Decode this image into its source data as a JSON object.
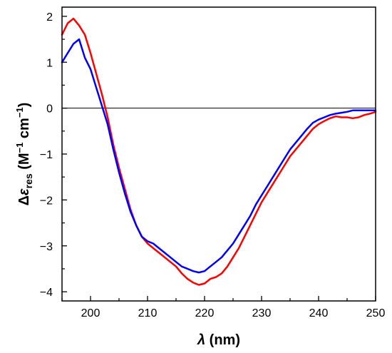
{
  "chart_data": {
    "type": "line",
    "title": "",
    "xlim": [
      195,
      250
    ],
    "ylim": [
      -4.2,
      2.2
    ],
    "x_ticks": [
      200,
      210,
      220,
      230,
      240,
      250
    ],
    "y_ticks": [
      -4,
      -3,
      -2,
      -1,
      0,
      1,
      2
    ],
    "x_tick_labels": [
      "200",
      "210",
      "220",
      "230",
      "240",
      "250"
    ],
    "y_tick_labels": [
      "−4",
      "−3",
      "−2",
      "−1",
      "0",
      "1",
      "2"
    ],
    "xlabel": {
      "main": "λ",
      "unit": " (nm)"
    },
    "ylabel": {
      "delta": "Δ",
      "eps": "ε",
      "sub": "res",
      "open": " (M",
      "sup1": "−1",
      "mid": " cm",
      "sup2": "−1",
      "close": ")"
    },
    "zero_line": true,
    "grid": false,
    "legend": "none",
    "series": [
      {
        "color": "#ff0000",
        "x": [
          195,
          196,
          197,
          198,
          199,
          200,
          201,
          202,
          203,
          204,
          205,
          206,
          207,
          208,
          209,
          210,
          211,
          212,
          213,
          214,
          215,
          216,
          217,
          218,
          219,
          220,
          221,
          222,
          223,
          224,
          225,
          226,
          227,
          228,
          229,
          230,
          231,
          232,
          233,
          234,
          235,
          236,
          237,
          238,
          239,
          240,
          241,
          242,
          243,
          244,
          245,
          246,
          247,
          248,
          249,
          250
        ],
        "y": [
          1.6,
          1.85,
          1.95,
          1.8,
          1.6,
          1.2,
          0.75,
          0.3,
          -0.2,
          -0.8,
          -1.3,
          -1.75,
          -2.2,
          -2.55,
          -2.8,
          -2.95,
          -3.05,
          -3.15,
          -3.25,
          -3.35,
          -3.45,
          -3.6,
          -3.72,
          -3.8,
          -3.85,
          -3.82,
          -3.72,
          -3.68,
          -3.6,
          -3.45,
          -3.25,
          -3.05,
          -2.8,
          -2.55,
          -2.3,
          -2.05,
          -1.85,
          -1.65,
          -1.45,
          -1.25,
          -1.05,
          -0.9,
          -0.75,
          -0.6,
          -0.45,
          -0.35,
          -0.28,
          -0.22,
          -0.18,
          -0.2,
          -0.2,
          -0.22,
          -0.2,
          -0.15,
          -0.12,
          -0.08
        ]
      },
      {
        "color": "#0000ff",
        "x": [
          195,
          196,
          197,
          198,
          199,
          200,
          201,
          202,
          203,
          204,
          205,
          206,
          207,
          208,
          209,
          210,
          211,
          212,
          213,
          214,
          215,
          216,
          217,
          218,
          219,
          220,
          221,
          222,
          223,
          224,
          225,
          226,
          227,
          228,
          229,
          230,
          231,
          232,
          233,
          234,
          235,
          236,
          237,
          238,
          239,
          240,
          241,
          242,
          243,
          244,
          245,
          246,
          247,
          248,
          249,
          250
        ],
        "y": [
          1.0,
          1.2,
          1.4,
          1.5,
          1.1,
          0.85,
          0.45,
          0.05,
          -0.35,
          -0.9,
          -1.4,
          -1.85,
          -2.25,
          -2.55,
          -2.8,
          -2.9,
          -2.95,
          -3.05,
          -3.15,
          -3.25,
          -3.35,
          -3.45,
          -3.5,
          -3.55,
          -3.58,
          -3.55,
          -3.45,
          -3.35,
          -3.25,
          -3.1,
          -2.95,
          -2.75,
          -2.55,
          -2.35,
          -2.1,
          -1.9,
          -1.7,
          -1.5,
          -1.3,
          -1.1,
          -0.9,
          -0.75,
          -0.6,
          -0.45,
          -0.32,
          -0.25,
          -0.2,
          -0.15,
          -0.12,
          -0.1,
          -0.08,
          -0.05,
          -0.05,
          -0.05,
          -0.05,
          -0.05
        ]
      }
    ]
  }
}
